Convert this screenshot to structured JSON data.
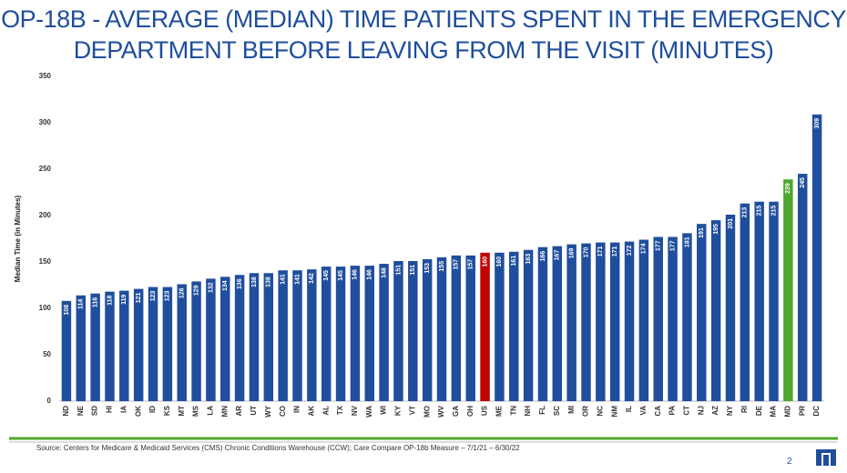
{
  "chart_data": {
    "type": "bar",
    "title": "OP-18B - AVERAGE (MEDIAN) TIME PATIENTS SPENT IN THE EMERGENCY DEPARTMENT BEFORE LEAVING FROM THE VISIT (MINUTES)",
    "y_label": "Median Time (in Minutes)",
    "categories": [
      "ND",
      "NE",
      "SD",
      "HI",
      "IA",
      "OK",
      "ID",
      "KS",
      "MT",
      "MS",
      "LA",
      "MN",
      "AR",
      "UT",
      "WY",
      "CO",
      "IN",
      "AK",
      "AL",
      "TX",
      "NV",
      "WA",
      "WI",
      "KY",
      "VT",
      "MO",
      "WV",
      "GA",
      "OH",
      "US",
      "ME",
      "TN",
      "NH",
      "FL",
      "SC",
      "MI",
      "OR",
      "NC",
      "NM",
      "IL",
      "VA",
      "CA",
      "PA",
      "CT",
      "NJ",
      "AZ",
      "NY",
      "RI",
      "DE",
      "MA",
      "MD",
      "PR",
      "DC"
    ],
    "values": [
      108,
      114,
      116,
      118,
      119,
      121,
      123,
      123,
      126,
      129,
      132,
      134,
      136,
      138,
      138,
      141,
      141,
      142,
      145,
      145,
      146,
      146,
      148,
      151,
      151,
      153,
      155,
      157,
      157,
      160,
      160,
      161,
      163,
      166,
      167,
      169,
      170,
      171,
      171,
      172,
      174,
      177,
      177,
      181,
      191,
      195,
      201,
      213,
      215,
      215,
      239,
      245,
      309
    ],
    "color": "#1f4e9c",
    "highlight_colors": {
      "29": "#c00000",
      "50": "#4ea72e"
    },
    "ylim": [
      0,
      350
    ],
    "yticks": [
      0,
      50,
      100,
      150,
      200,
      250,
      300,
      350
    ],
    "grid": false,
    "source": "Source: Centers for Medicare & Medicaid Services (CMS) Chronic Conditions Warehouse (CCW); Care Compare OP-18b Measure – 7/1/21 – 6/30/22",
    "page_number": "2"
  }
}
